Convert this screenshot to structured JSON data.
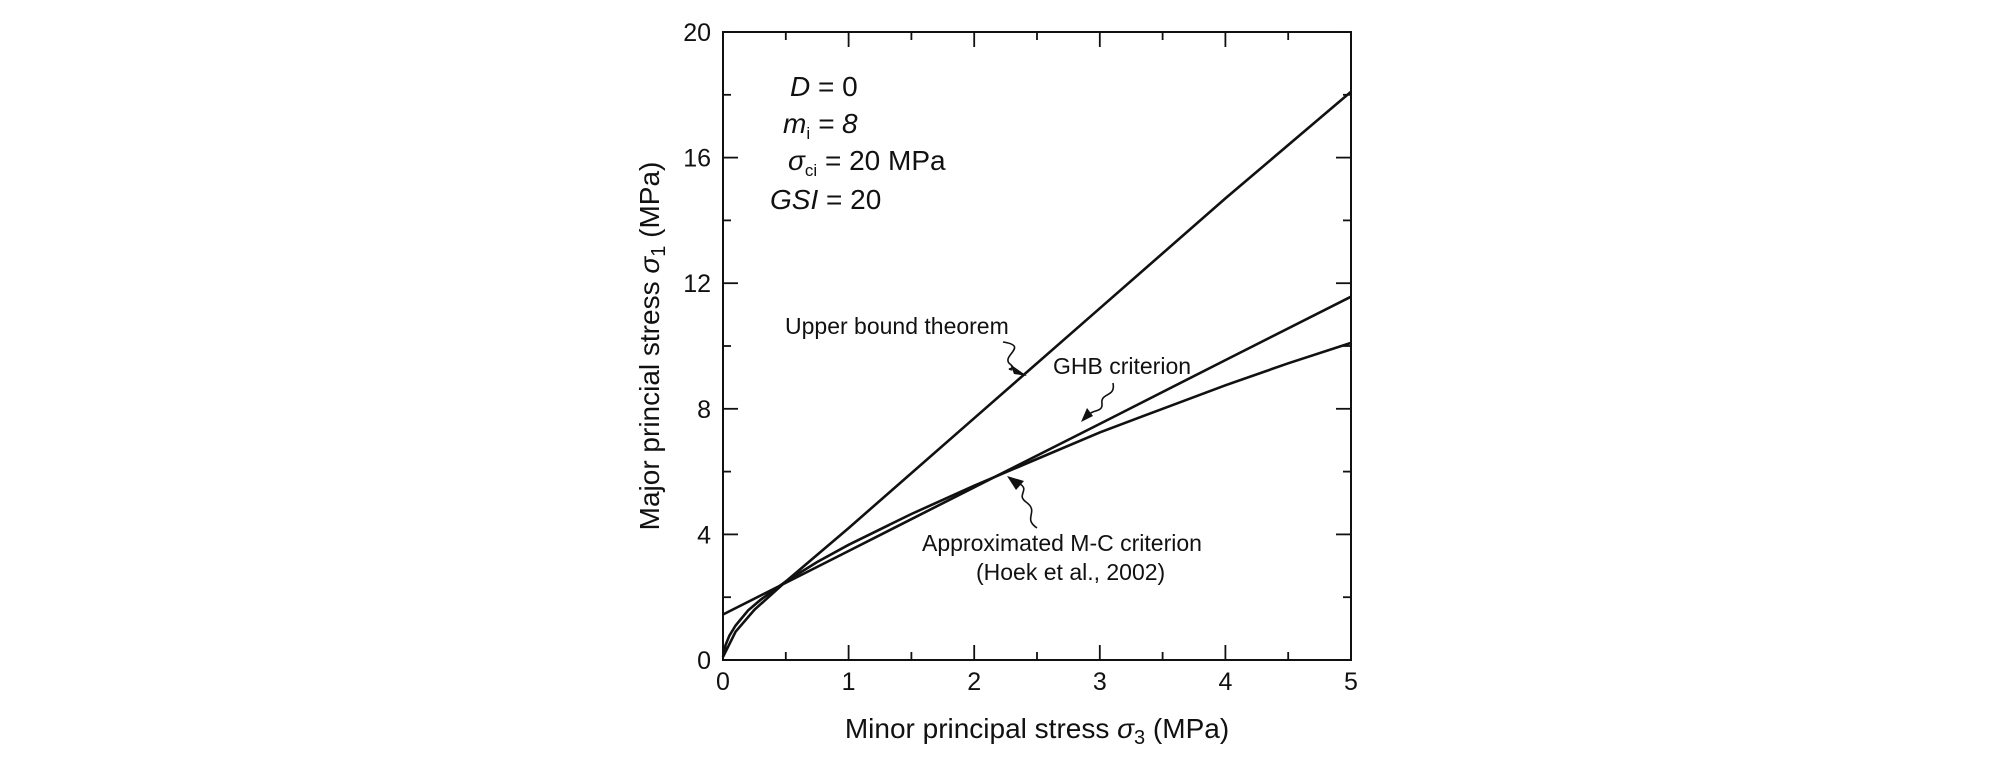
{
  "chart_data": {
    "type": "line",
    "xlabel": {
      "prefix": "Minor principal stress ",
      "symbol": "σ",
      "sub": "3",
      "suffix": " (MPa)"
    },
    "ylabel": {
      "prefix": "Major princial stress ",
      "symbol": "σ",
      "sub": "1",
      "suffix": " (MPa)"
    },
    "xlim": [
      0,
      5
    ],
    "ylim": [
      0,
      20
    ],
    "x_ticks": [
      0,
      1,
      2,
      3,
      4,
      5
    ],
    "x_minor_ticks": [
      0.5,
      1.5,
      2.5,
      3.5,
      4.5
    ],
    "y_ticks": [
      0,
      4,
      8,
      12,
      16,
      20
    ],
    "y_minor_ticks": [
      2,
      6,
      10,
      14,
      18
    ],
    "grid": false,
    "legend": "none",
    "parameters": [
      {
        "name": "D",
        "sub": "",
        "value": " = 0",
        "italic_value": false
      },
      {
        "name": "m",
        "sub": "i",
        "value": " = 8",
        "italic_value": true
      },
      {
        "name": "σ",
        "sub": "ci",
        "value": " = 20 MPa",
        "italic_value": false
      },
      {
        "name": "GSI",
        "sub": "",
        "value": " = 20",
        "italic_value": false
      }
    ],
    "series": [
      {
        "key": "upper",
        "x": [
          0,
          0.1,
          0.25,
          0.5,
          1,
          2,
          3,
          4,
          5
        ],
        "y": [
          0.1,
          0.9,
          1.6,
          2.5,
          4.2,
          7.7,
          11.2,
          14.7,
          18.1
        ]
      },
      {
        "key": "ghb",
        "x": [
          0,
          0.02,
          0.05,
          0.1,
          0.2,
          0.3,
          0.5,
          0.75,
          1,
          1.5,
          2,
          2.5,
          3,
          3.5,
          4,
          4.5,
          5
        ],
        "y": [
          0.1,
          0.47,
          0.77,
          1.1,
          1.58,
          1.92,
          2.5,
          3.12,
          3.67,
          4.65,
          5.55,
          6.4,
          7.25,
          8.0,
          8.75,
          9.45,
          10.1
        ]
      },
      {
        "key": "mc",
        "x": [
          0,
          1,
          2,
          3,
          4,
          5
        ],
        "y": [
          1.45,
          3.47,
          5.5,
          7.52,
          9.55,
          11.57
        ]
      }
    ],
    "annotations": [
      {
        "key": "upper",
        "lines": [
          "Upper bound theorem"
        ]
      },
      {
        "key": "ghb",
        "lines": [
          "GHB criterion"
        ]
      },
      {
        "key": "mc",
        "lines": [
          "Approximated M-C criterion",
          "(Hoek et al., 2002)"
        ]
      }
    ]
  }
}
